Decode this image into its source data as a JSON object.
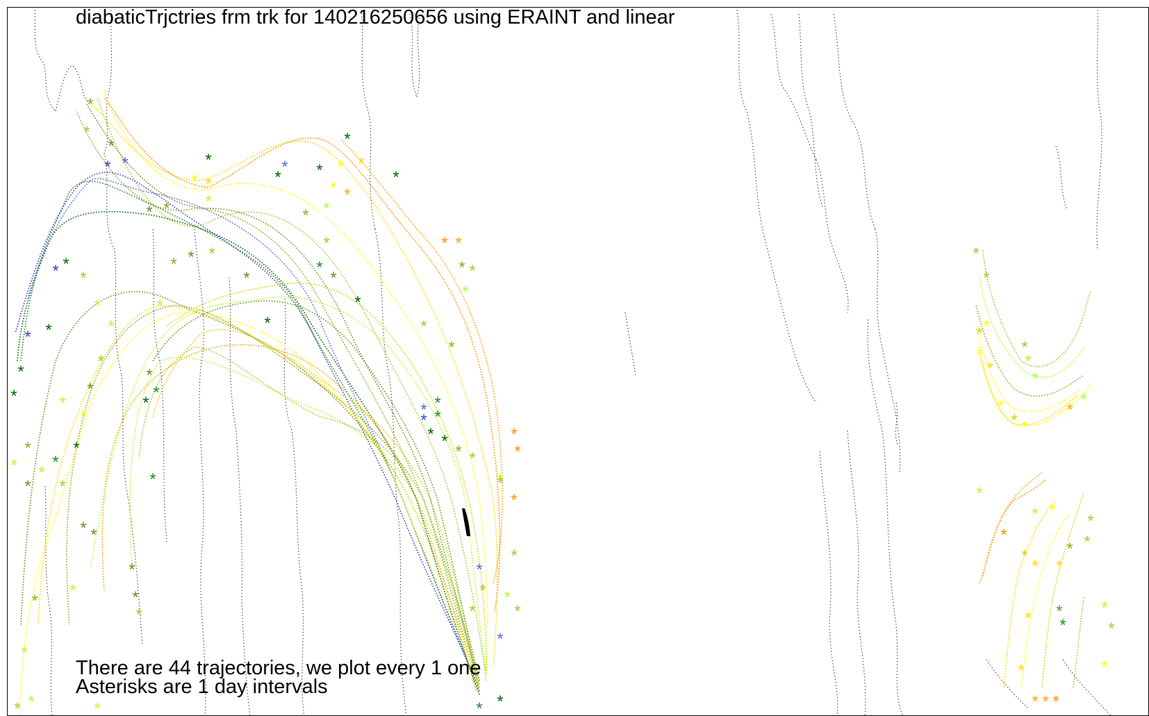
{
  "title": "diabaticTrjctries frm trk for 140216250656 using ERAINT and linear",
  "notes": {
    "count_line": "There are 44 trajectories, we plot every 1 one",
    "asterisk_line": "Asterisks are 1 day intervals"
  },
  "legend": {
    "colors": [
      "#3f3fbf",
      "#5a6ae0",
      "#006400",
      "#228b22",
      "#6b8e23",
      "#8fa81f",
      "#9acd32",
      "#adff2f",
      "#d4d400",
      "#ffff00",
      "#ffd700",
      "#ffa500",
      "#ff8c00"
    ]
  },
  "marker_glyph": "*",
  "trajectory_count": 44,
  "plot_interval": 1
}
